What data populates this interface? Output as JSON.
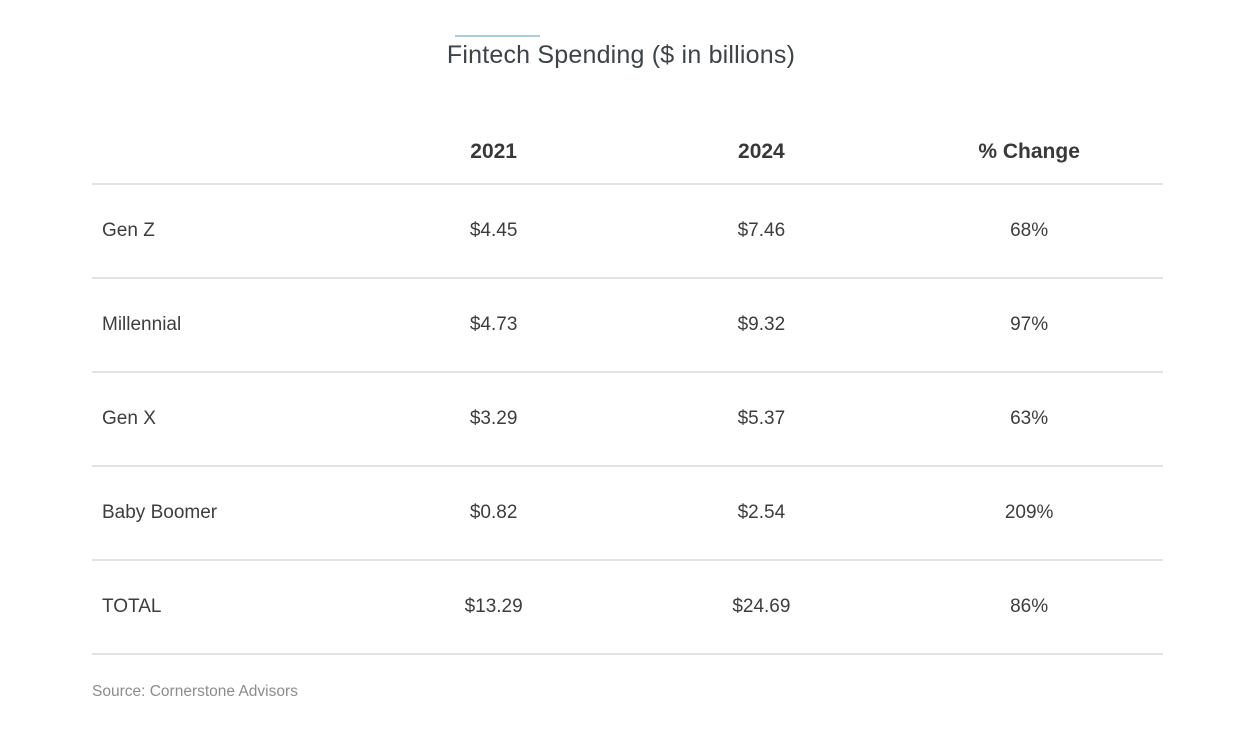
{
  "title": {
    "text": "Fintech Spending ($ in billions)"
  },
  "table": {
    "columns": [
      "",
      "2021",
      "2024",
      "% Change"
    ],
    "rows": [
      {
        "label": "Gen Z",
        "y2021": "$4.45",
        "y2024": "$7.46",
        "change": "68%"
      },
      {
        "label": "Millennial",
        "y2021": "$4.73",
        "y2024": "$9.32",
        "change": "97%"
      },
      {
        "label": "Gen X",
        "y2021": "$3.29",
        "y2024": "$5.37",
        "change": "63%"
      },
      {
        "label": "Baby Boomer",
        "y2021": "$0.82",
        "y2024": "$2.54",
        "change": "209%"
      },
      {
        "label": "TOTAL",
        "y2021": "$13.29",
        "y2024": "$24.69",
        "change": "86%"
      }
    ]
  },
  "footer": {
    "source_note": "Source: Cornerstone Advisors"
  },
  "colors": {
    "background": "#ffffff",
    "accent_rule": "#aecadc",
    "divider": "#e3e3e3",
    "title_text": "#3e4347",
    "header_text": "#383838",
    "body_text": "#3d3d3d",
    "source_text": "#8c8c8c"
  },
  "chart_data": {
    "type": "table",
    "title": "Fintech Spending ($ in billions)",
    "columns": [
      "2021",
      "2024",
      "% Change"
    ],
    "categories": [
      "Gen Z",
      "Millennial",
      "Gen X",
      "Baby Boomer",
      "TOTAL"
    ],
    "series": [
      {
        "name": "2021",
        "values": [
          4.45,
          4.73,
          3.29,
          0.82,
          13.29
        ]
      },
      {
        "name": "2024",
        "values": [
          7.46,
          9.32,
          5.37,
          2.54,
          24.69
        ]
      },
      {
        "name": "% Change",
        "values": [
          68,
          97,
          63,
          209,
          86
        ]
      }
    ],
    "units": "$ in billions",
    "source": "Source: Cornerstone Advisors",
    "layout": {
      "label_column_align": "left",
      "data_columns_align": "center",
      "grid": "horizontal-dividers-only"
    }
  }
}
